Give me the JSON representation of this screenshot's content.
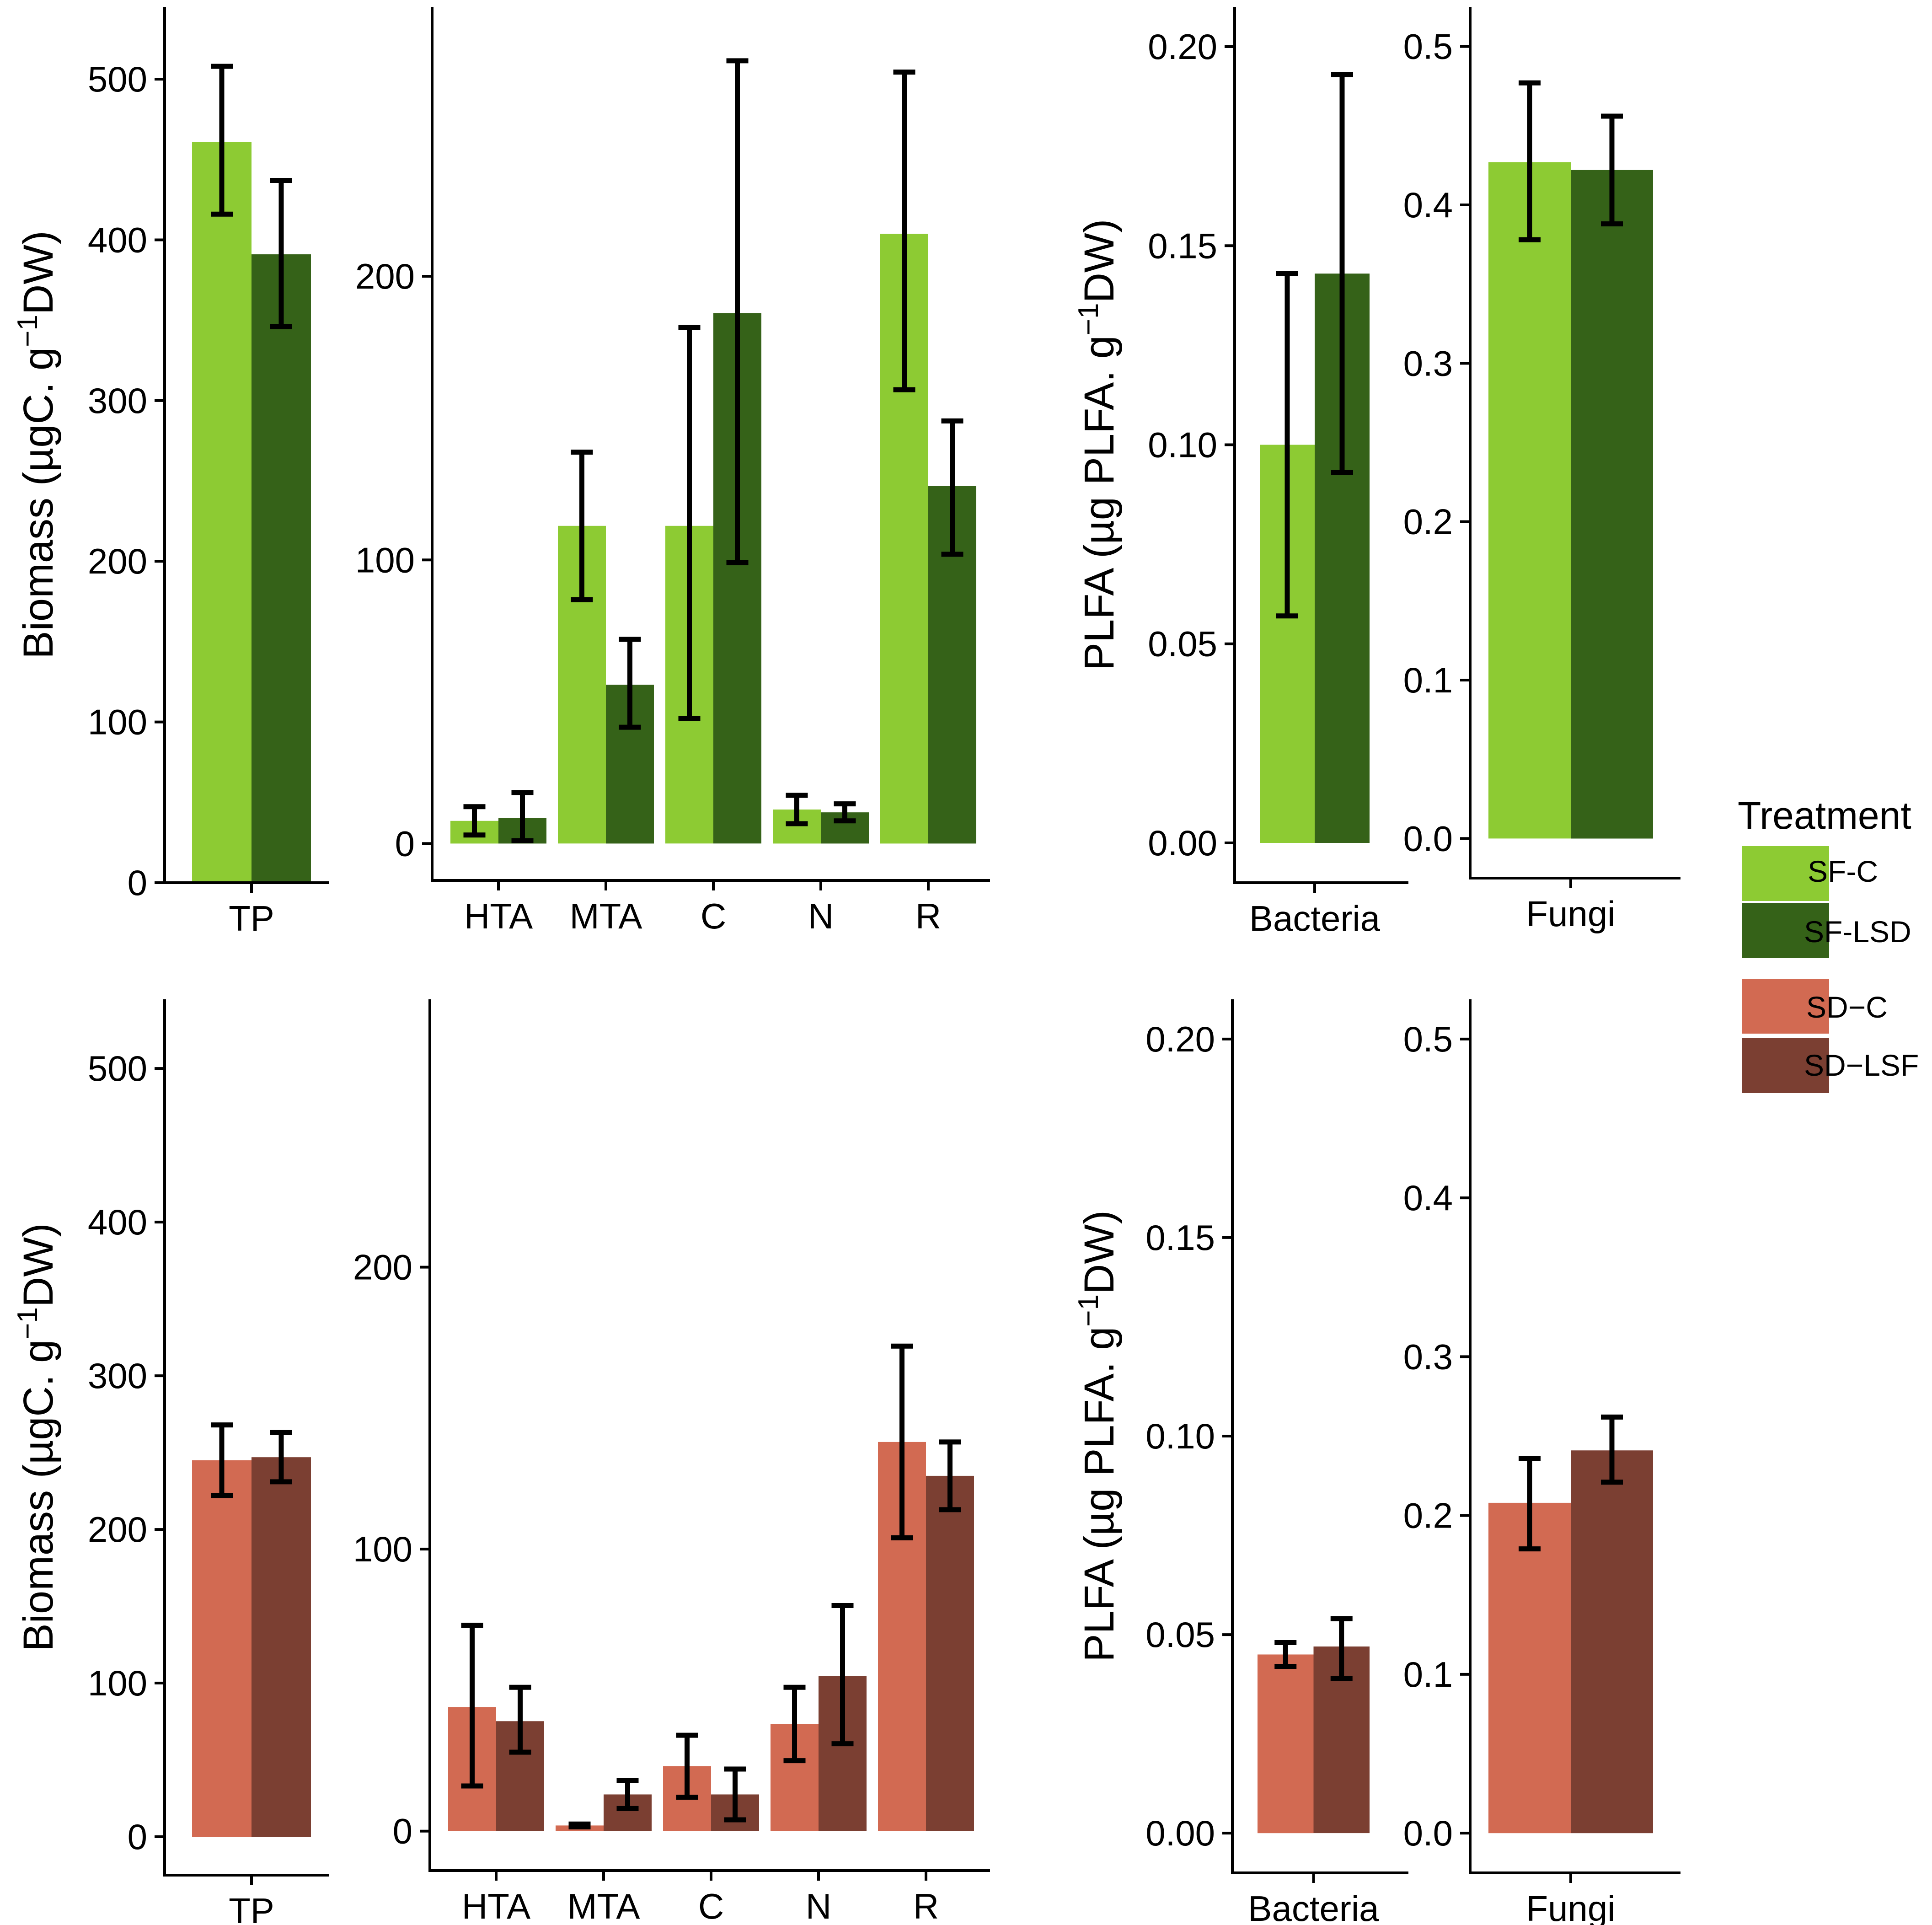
{
  "chart_data": [
    {
      "id": "top-tp",
      "type": "bar",
      "row": "top",
      "ylabel": "Biomass (µgC. g⁻¹DW)",
      "ylim": [
        0,
        545
      ],
      "yticks": [
        "0",
        "100",
        "200",
        "300",
        "400",
        "500"
      ],
      "ytick_values": [
        0,
        100,
        200,
        300,
        400,
        500
      ],
      "categories": [
        "TP"
      ],
      "series": [
        {
          "name": "SF-C",
          "values": [
            461
          ],
          "err_low": [
            416
          ],
          "err_high": [
            508
          ]
        },
        {
          "name": "SF-LSD",
          "values": [
            391
          ],
          "err_low": [
            346
          ],
          "err_high": [
            437
          ]
        }
      ]
    },
    {
      "id": "top-groups",
      "type": "bar",
      "row": "top",
      "ylabel": "",
      "ylim": [
        -13,
        295
      ],
      "yticks": [
        "0",
        "100",
        "200"
      ],
      "ytick_values": [
        0,
        100,
        200
      ],
      "categories": [
        "HTA",
        "MTA",
        "C",
        "N",
        "R"
      ],
      "series": [
        {
          "name": "SF-C",
          "values": [
            8,
            112,
            112,
            12,
            215
          ],
          "err_low": [
            3,
            86,
            44,
            7,
            160
          ],
          "err_high": [
            13,
            138,
            182,
            17,
            272
          ]
        },
        {
          "name": "SF-LSD",
          "values": [
            9,
            56,
            187,
            11,
            126
          ],
          "err_low": [
            1,
            41,
            99,
            8,
            102
          ],
          "err_high": [
            18,
            72,
            276,
            14,
            149
          ]
        }
      ]
    },
    {
      "id": "top-bacteria",
      "type": "bar",
      "row": "top",
      "ylabel": "PLFA (µg PLFA. g⁻¹DW)",
      "ylim": [
        -0.01,
        0.21
      ],
      "yticks": [
        "0.00",
        "0.05",
        "0.10",
        "0.15",
        "0.20"
      ],
      "ytick_values": [
        0,
        0.05,
        0.1,
        0.15,
        0.2
      ],
      "categories": [
        "Bacteria"
      ],
      "series": [
        {
          "name": "SF-C",
          "values": [
            0.1
          ],
          "err_low": [
            0.057
          ],
          "err_high": [
            0.143
          ]
        },
        {
          "name": "SF-LSD",
          "values": [
            0.143
          ],
          "err_low": [
            0.093
          ],
          "err_high": [
            0.193
          ]
        }
      ]
    },
    {
      "id": "top-fungi",
      "type": "bar",
      "row": "top",
      "ylabel": "",
      "ylim": [
        -0.025,
        0.525
      ],
      "yticks": [
        "0.0",
        "0.1",
        "0.2",
        "0.3",
        "0.4",
        "0.5"
      ],
      "ytick_values": [
        0,
        0.1,
        0.2,
        0.3,
        0.4,
        0.5
      ],
      "categories": [
        "Fungi"
      ],
      "series": [
        {
          "name": "SF-C",
          "values": [
            0.427
          ],
          "err_low": [
            0.378
          ],
          "err_high": [
            0.477
          ]
        },
        {
          "name": "SF-LSD",
          "values": [
            0.422
          ],
          "err_low": [
            0.388
          ],
          "err_high": [
            0.456
          ]
        }
      ]
    },
    {
      "id": "bottom-tp",
      "type": "bar",
      "row": "bottom",
      "ylabel": "Biomass (µgC. g⁻¹DW)",
      "ylim": [
        -25,
        545
      ],
      "yticks": [
        "0",
        "100",
        "200",
        "300",
        "400",
        "500"
      ],
      "ytick_values": [
        0,
        100,
        200,
        300,
        400,
        500
      ],
      "categories": [
        "TP"
      ],
      "series": [
        {
          "name": "SD-C",
          "values": [
            245
          ],
          "err_low": [
            222
          ],
          "err_high": [
            268
          ]
        },
        {
          "name": "SD-LSF",
          "values": [
            247
          ],
          "err_low": [
            231
          ],
          "err_high": [
            263
          ]
        }
      ]
    },
    {
      "id": "bottom-groups",
      "type": "bar",
      "row": "bottom",
      "ylabel": "",
      "ylim": [
        -14,
        295
      ],
      "yticks": [
        "0",
        "100",
        "200"
      ],
      "ytick_values": [
        0,
        100,
        200
      ],
      "categories": [
        "HTA",
        "MTA",
        "C",
        "N",
        "R"
      ],
      "series": [
        {
          "name": "SD-C",
          "values": [
            44,
            2,
            23,
            38,
            138
          ],
          "err_low": [
            16,
            1.5,
            12,
            25,
            104
          ],
          "err_high": [
            73,
            2.5,
            34,
            51,
            172
          ]
        },
        {
          "name": "SD-LSF",
          "values": [
            39,
            13,
            13,
            55,
            126
          ],
          "err_low": [
            28,
            8,
            4,
            31,
            114
          ],
          "err_high": [
            51,
            18,
            22,
            80,
            138
          ]
        }
      ]
    },
    {
      "id": "bottom-bacteria",
      "type": "bar",
      "row": "bottom",
      "ylabel": "PLFA (µg PLFA. g⁻¹DW)",
      "ylim": [
        -0.01,
        0.21
      ],
      "yticks": [
        "0.00",
        "0.05",
        "0.10",
        "0.15",
        "0.20"
      ],
      "ytick_values": [
        0,
        0.05,
        0.1,
        0.15,
        0.2
      ],
      "categories": [
        "Bacteria"
      ],
      "series": [
        {
          "name": "SD-C",
          "values": [
            0.045
          ],
          "err_low": [
            0.042
          ],
          "err_high": [
            0.048
          ]
        },
        {
          "name": "SD-LSF",
          "values": [
            0.047
          ],
          "err_low": [
            0.039
          ],
          "err_high": [
            0.054
          ]
        }
      ]
    },
    {
      "id": "bottom-fungi",
      "type": "bar",
      "row": "bottom",
      "ylabel": "",
      "ylim": [
        -0.025,
        0.525
      ],
      "yticks": [
        "0.0",
        "0.1",
        "0.2",
        "0.3",
        "0.4",
        "0.5"
      ],
      "ytick_values": [
        0,
        0.1,
        0.2,
        0.3,
        0.4,
        0.5
      ],
      "categories": [
        "Fungi"
      ],
      "series": [
        {
          "name": "SD-C",
          "values": [
            0.208
          ],
          "err_low": [
            0.179
          ],
          "err_high": [
            0.236
          ]
        },
        {
          "name": "SD-LSF",
          "values": [
            0.241
          ],
          "err_low": [
            0.221
          ],
          "err_high": [
            0.262
          ]
        }
      ]
    }
  ],
  "legend": {
    "title": "Treatment",
    "entries": [
      {
        "name": "SF-C",
        "label": "SF-C",
        "color": "#8dcb33"
      },
      {
        "name": "SF-LSD",
        "label": "SF-LSD",
        "color": "#356218"
      },
      {
        "name": "SD-C",
        "label": "SD−C",
        "color": "#d26a52"
      },
      {
        "name": "SD-LSF",
        "label": "SD−LSF",
        "color": "#7b3f32"
      }
    ]
  }
}
